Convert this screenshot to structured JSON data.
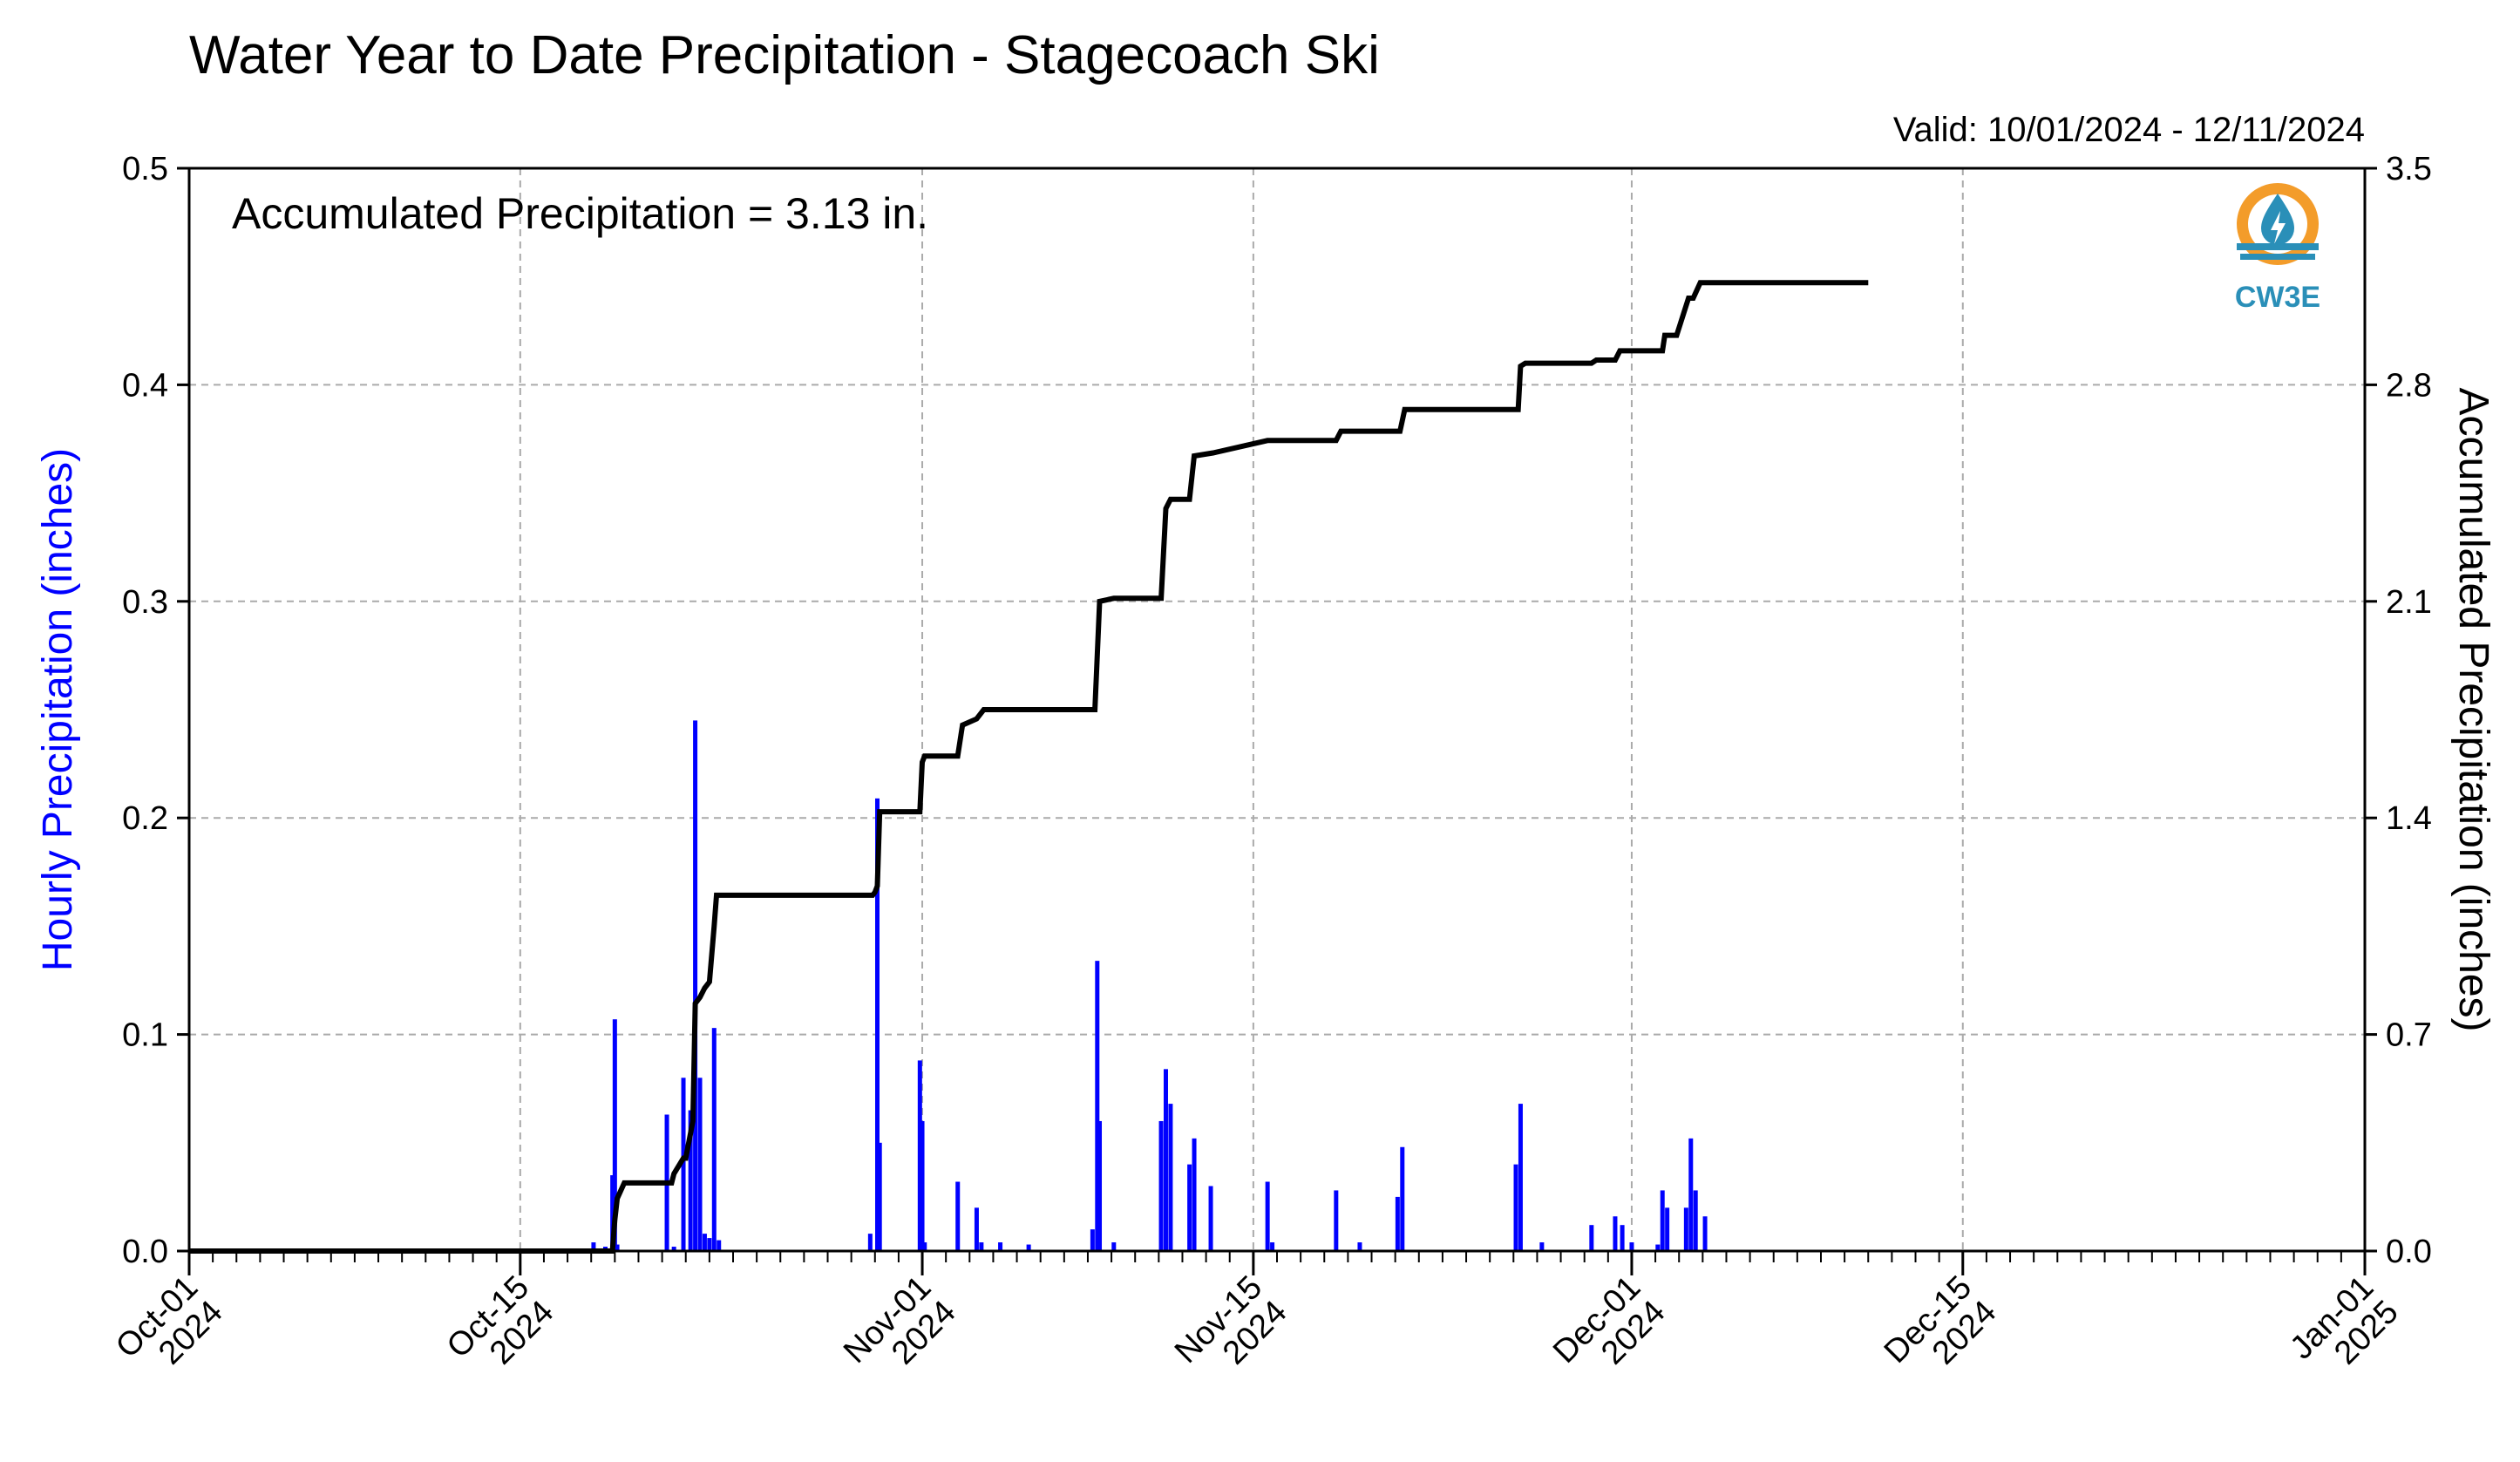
{
  "chart_data": {
    "type": "bar",
    "title": "Water Year to Date Precipitation - Stagecoach Ski",
    "valid_text": "Valid: 10/01/2024 - 12/11/2024",
    "annotation": "Accumulated Precipitation = 3.13 in.",
    "logo_text": "CW3E",
    "left_ylabel": "Hourly Precipitation (inches)",
    "right_ylabel": "Accumulated Precipitation (inches)",
    "left_ylim": [
      0.0,
      0.5
    ],
    "right_ylim": [
      0.0,
      3.5
    ],
    "left_yticks": [
      "0.0",
      "0.1",
      "0.2",
      "0.3",
      "0.4",
      "0.5"
    ],
    "right_yticks": [
      "0.0",
      "0.7",
      "1.4",
      "2.1",
      "2.8",
      "3.5"
    ],
    "xlim_days": [
      0,
      92
    ],
    "x_ticks": [
      {
        "day": 0,
        "line1": "Oct-01",
        "line2": "2024"
      },
      {
        "day": 14,
        "line1": "Oct-15",
        "line2": "2024"
      },
      {
        "day": 31,
        "line1": "Nov-01",
        "line2": "2024"
      },
      {
        "day": 45,
        "line1": "Nov-15",
        "line2": "2024"
      },
      {
        "day": 61,
        "line1": "Dec-01",
        "line2": "2024"
      },
      {
        "day": 75,
        "line1": "Dec-15",
        "line2": "2024"
      },
      {
        "day": 92,
        "line1": "Jan-01",
        "line2": "2025"
      }
    ],
    "grid": true,
    "colors": {
      "hourly": "#0000ff",
      "accumulated": "#000000",
      "grid": "#aaaaaa",
      "logo_ring": "#f39c2a",
      "logo_blue": "#2a8fb8"
    },
    "hourly_series": {
      "name": "Hourly Precipitation",
      "x_days": [
        17.1,
        17.6,
        17.9,
        18.0,
        18.1,
        20.2,
        20.5,
        20.9,
        21.2,
        21.4,
        21.6,
        21.8,
        22.0,
        22.2,
        22.4,
        28.8,
        29.1,
        29.2,
        30.9,
        31.0,
        31.1,
        32.5,
        33.3,
        33.5,
        34.3,
        35.5,
        38.2,
        38.4,
        38.5,
        39.1,
        41.1,
        41.3,
        41.5,
        42.3,
        42.5,
        43.2,
        45.6,
        45.8,
        48.5,
        49.5,
        51.1,
        51.3,
        56.1,
        56.3,
        57.2,
        59.3,
        60.3,
        60.6,
        61.0,
        62.1,
        62.3,
        62.5,
        63.3,
        63.5,
        63.7,
        64.1
      ],
      "values": [
        0.004,
        0.002,
        0.035,
        0.107,
        0.003,
        0.063,
        0.002,
        0.08,
        0.065,
        0.245,
        0.08,
        0.008,
        0.006,
        0.103,
        0.005,
        0.008,
        0.209,
        0.05,
        0.088,
        0.06,
        0.004,
        0.032,
        0.02,
        0.004,
        0.004,
        0.003,
        0.01,
        0.134,
        0.06,
        0.004,
        0.06,
        0.084,
        0.068,
        0.04,
        0.052,
        0.03,
        0.032,
        0.004,
        0.028,
        0.004,
        0.025,
        0.048,
        0.04,
        0.068,
        0.004,
        0.012,
        0.016,
        0.012,
        0.004,
        0.003,
        0.028,
        0.02,
        0.02,
        0.052,
        0.028,
        0.016
      ]
    },
    "accumulated_series": {
      "name": "Accumulated Precipitation",
      "x_days": [
        0,
        17.9,
        18.0,
        18.1,
        18.4,
        20.4,
        20.5,
        20.9,
        21.0,
        21.3,
        21.4,
        21.6,
        21.8,
        22.0,
        22.2,
        22.3,
        28.9,
        29.0,
        29.1,
        29.2,
        30.9,
        31.0,
        31.1,
        32.5,
        32.7,
        33.3,
        33.6,
        34.2,
        37.5,
        38.3,
        38.5,
        39.1,
        41.1,
        41.3,
        41.5,
        42.3,
        42.5,
        43.3,
        45.6,
        45.8,
        48.5,
        48.7,
        51.2,
        51.4,
        56.2,
        56.3,
        56.5,
        59.3,
        59.5,
        60.3,
        60.5,
        62.3,
        62.4,
        62.9,
        63.4,
        63.6,
        63.9,
        64.2,
        71.0
      ],
      "values": [
        0.0,
        0.0,
        0.1,
        0.17,
        0.22,
        0.22,
        0.25,
        0.3,
        0.3,
        0.42,
        0.8,
        0.82,
        0.85,
        0.87,
        1.05,
        1.15,
        1.15,
        1.16,
        1.18,
        1.42,
        1.42,
        1.58,
        1.6,
        1.6,
        1.7,
        1.72,
        1.75,
        1.75,
        1.75,
        1.75,
        2.1,
        2.11,
        2.11,
        2.4,
        2.43,
        2.43,
        2.57,
        2.58,
        2.62,
        2.62,
        2.62,
        2.65,
        2.65,
        2.72,
        2.72,
        2.86,
        2.87,
        2.87,
        2.88,
        2.88,
        2.91,
        2.91,
        2.96,
        2.96,
        3.08,
        3.08,
        3.13,
        3.13,
        3.13
      ]
    }
  }
}
